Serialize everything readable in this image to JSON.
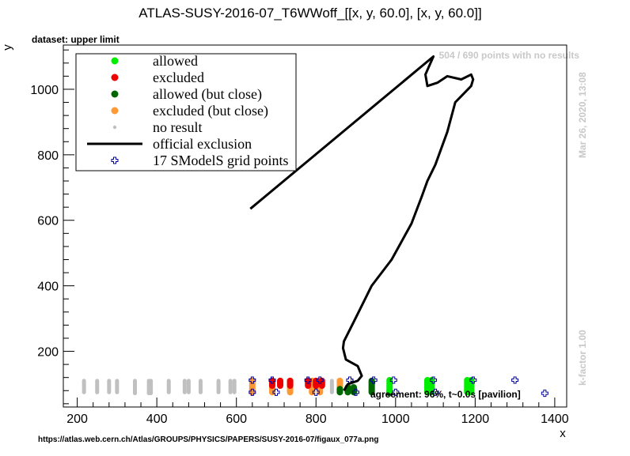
{
  "chart_data": {
    "type": "scatter",
    "title": "ATLAS-SUSY-2016-07_T6WWoff_[[x, y, 60.0], [x, y, 60.0]]",
    "subtitle": "dataset: upper limit",
    "xlabel": "x",
    "ylabel": "y",
    "xlim": [
      165,
      1430
    ],
    "ylim": [
      30,
      1135
    ],
    "xticks": [
      200,
      400,
      600,
      800,
      1000,
      1200,
      1400
    ],
    "yticks": [
      200,
      400,
      600,
      800,
      1000
    ],
    "grid": false,
    "legend_position": "top-left",
    "legend": [
      {
        "label": "allowed",
        "marker": "dot",
        "color": "#00ee00"
      },
      {
        "label": "excluded",
        "marker": "dot",
        "color": "#ee0000"
      },
      {
        "label": "allowed (but close)",
        "marker": "dot",
        "color": "#006600"
      },
      {
        "label": "excluded (but close)",
        "marker": "dot",
        "color": "#ff9933"
      },
      {
        "label": "no result",
        "marker": "small-dot",
        "color": "#c0c0c0"
      },
      {
        "label": "official exclusion",
        "marker": "line",
        "color": "#000000"
      },
      {
        "label": "17 SModelS grid points",
        "marker": "cross",
        "color": "#000099"
      }
    ],
    "annotations": {
      "no_results": "504 / 690 points with no results",
      "timestamp": "Mar 26, 2020, 13:08",
      "kfactor": "k-factor 1.00",
      "agreement": "agreement: 96%, t~0.0s [pavilion]",
      "url": "https://atlas.web.cern.ch/Atlas/GROUPS/PHYSICS/PAPERS/SUSY-2016-07/figaux_077a.png"
    },
    "series": [
      {
        "name": "no result",
        "color": "#c0c0c0",
        "columns": [
          {
            "x": 217,
            "y": [
              75,
              110
            ]
          },
          {
            "x": 250,
            "y": [
              75,
              110
            ]
          },
          {
            "x": 280,
            "y": [
              75,
              110
            ]
          },
          {
            "x": 300,
            "y": [
              75,
              110
            ]
          },
          {
            "x": 345,
            "y": [
              72,
              110
            ]
          },
          {
            "x": 380,
            "y": [
              72,
              110
            ]
          },
          {
            "x": 385,
            "y": [
              72,
              110
            ]
          },
          {
            "x": 430,
            "y": [
              75,
              110
            ]
          },
          {
            "x": 470,
            "y": [
              75,
              110
            ]
          },
          {
            "x": 480,
            "y": [
              75,
              110
            ]
          },
          {
            "x": 510,
            "y": [
              75,
              110
            ]
          },
          {
            "x": 555,
            "y": [
              75,
              110
            ]
          },
          {
            "x": 585,
            "y": [
              75,
              110
            ]
          },
          {
            "x": 595,
            "y": [
              75,
              110
            ]
          },
          {
            "x": 840,
            "y": [
              75,
              110
            ]
          },
          {
            "x": 890,
            "y": [
              75,
              110
            ]
          }
        ]
      },
      {
        "name": "excluded (but close)",
        "color": "#ff9933",
        "columns": [
          {
            "x": 640,
            "y": [
              75,
              110
            ]
          },
          {
            "x": 690,
            "y": [
              75,
              110
            ]
          },
          {
            "x": 735,
            "y": [
              75,
              110
            ]
          },
          {
            "x": 790,
            "y": [
              75,
              110
            ]
          },
          {
            "x": 810,
            "y": [
              75,
              110
            ]
          },
          {
            "x": 860,
            "y": [
              85,
              110
            ]
          }
        ]
      },
      {
        "name": "excluded",
        "color": "#ee0000",
        "columns": [
          {
            "x": 690,
            "y": [
              95,
              110
            ]
          },
          {
            "x": 710,
            "y": [
              95,
              110
            ]
          },
          {
            "x": 735,
            "y": [
              95,
              110
            ]
          },
          {
            "x": 780,
            "y": [
              95,
              110
            ]
          },
          {
            "x": 800,
            "y": [
              95,
              110
            ]
          },
          {
            "x": 815,
            "y": [
              95,
              110
            ]
          }
        ]
      },
      {
        "name": "allowed (but close)",
        "color": "#006600",
        "columns": [
          {
            "x": 860,
            "y": [
              75,
              85
            ]
          },
          {
            "x": 880,
            "y": [
              75,
              90
            ]
          },
          {
            "x": 895,
            "y": [
              75,
              90
            ]
          },
          {
            "x": 940,
            "y": [
              75,
              110
            ]
          },
          {
            "x": 985,
            "y": [
              72,
              80
            ]
          }
        ]
      },
      {
        "name": "allowed",
        "color": "#00ee00",
        "columns": [
          {
            "x": 985,
            "y": [
              80,
              112
            ]
          },
          {
            "x": 1080,
            "y": [
              75,
              112
            ]
          },
          {
            "x": 1090,
            "y": [
              75,
              112
            ]
          },
          {
            "x": 1180,
            "y": [
              75,
              112
            ]
          },
          {
            "x": 1190,
            "y": [
              75,
              112
            ]
          }
        ]
      },
      {
        "name": "17 SModelS grid points",
        "color": "#000099",
        "points": [
          [
            640,
            112
          ],
          [
            640,
            75
          ],
          [
            690,
            112
          ],
          [
            700,
            75
          ],
          [
            780,
            112
          ],
          [
            800,
            75
          ],
          [
            810,
            112
          ],
          [
            885,
            112
          ],
          [
            900,
            75
          ],
          [
            945,
            112
          ],
          [
            995,
            112
          ],
          [
            1000,
            75
          ],
          [
            1095,
            112
          ],
          [
            1100,
            75
          ],
          [
            1195,
            112
          ],
          [
            1300,
            112
          ],
          [
            1375,
            72
          ]
        ]
      },
      {
        "name": "official exclusion",
        "color": "#000000",
        "line": [
          [
            635,
            635
          ],
          [
            1095,
            1100
          ],
          [
            1075,
            1045
          ],
          [
            1080,
            1010
          ],
          [
            1105,
            1020
          ],
          [
            1130,
            1040
          ],
          [
            1165,
            1030
          ],
          [
            1190,
            1045
          ],
          [
            1195,
            1030
          ],
          [
            1190,
            1010
          ],
          [
            1150,
            960
          ],
          [
            1130,
            870
          ],
          [
            1100,
            770
          ],
          [
            1080,
            720
          ],
          [
            1065,
            670
          ],
          [
            1040,
            590
          ],
          [
            990,
            480
          ],
          [
            940,
            400
          ],
          [
            895,
            290
          ],
          [
            870,
            230
          ],
          [
            868,
            210
          ],
          [
            875,
            175
          ],
          [
            905,
            155
          ],
          [
            915,
            125
          ],
          [
            905,
            110
          ],
          [
            880,
            100
          ],
          [
            870,
            80
          ]
        ]
      }
    ]
  }
}
